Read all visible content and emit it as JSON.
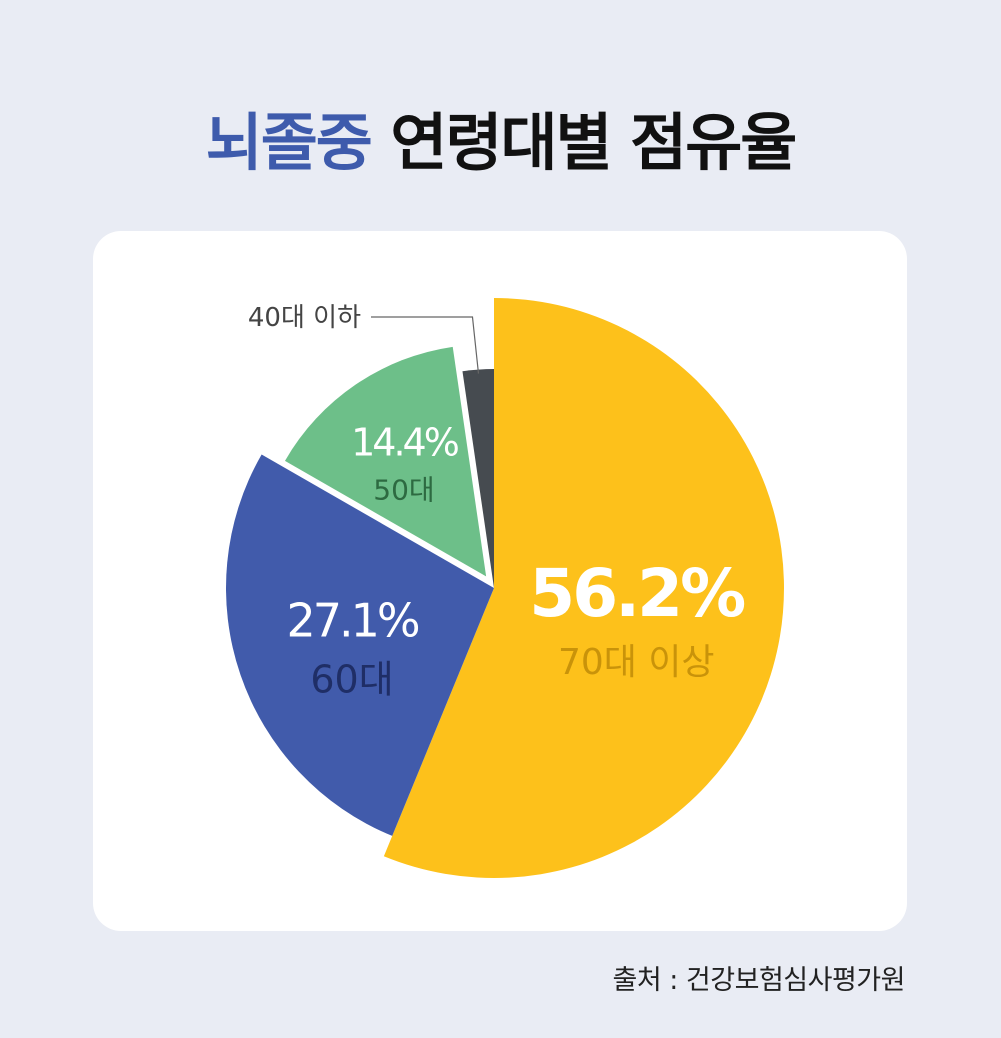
{
  "title": {
    "highlight": "뇌졸중",
    "rest": "연령대별 점유율"
  },
  "source": "출처 : 건강보험심사평가원",
  "chart_data": {
    "type": "pie",
    "title": "뇌졸중 연령대별 점유율",
    "slices": [
      {
        "label": "70대 이상",
        "value": 56.2,
        "value_label": "56.2%",
        "color": "#fdc11b",
        "value_color": "#ffffff",
        "label_color": "#c9930a"
      },
      {
        "label": "60대",
        "value": 27.1,
        "value_label": "27.1%",
        "color": "#415bab",
        "value_color": "#ffffff",
        "label_color": "#1f2e66"
      },
      {
        "label": "50대",
        "value": 14.4,
        "value_label": "14.4%",
        "color": "#6dbf89",
        "value_color": "#ffffff",
        "label_color": "#2d6a41"
      },
      {
        "label": "40대 이하",
        "value": 2.3,
        "value_label": "",
        "color": "#464b50",
        "value_color": "#ffffff",
        "label_color": "#444444"
      }
    ],
    "start_angle_deg": 0,
    "direction": "clockwise",
    "legend": "none"
  }
}
